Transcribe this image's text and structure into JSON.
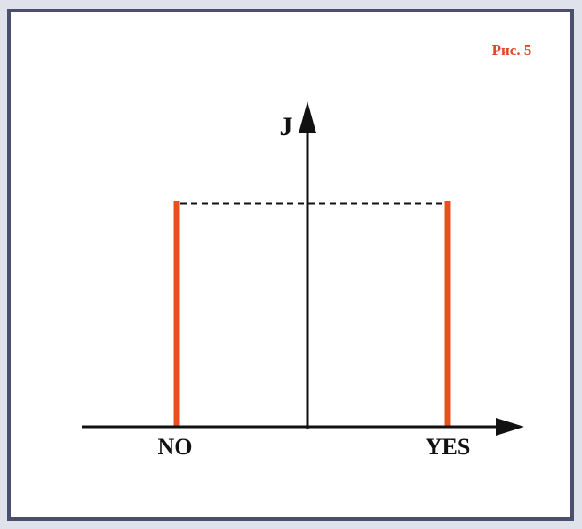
{
  "caption": "Рис. 5",
  "y_axis_label": "J",
  "x_labels": [
    "NO",
    "YES"
  ]
}
